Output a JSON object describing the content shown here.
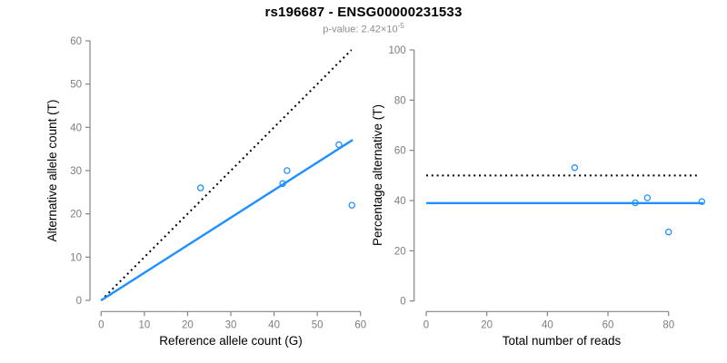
{
  "header": {
    "title": "rs196687 - ENSG00000231533",
    "subtitle": {
      "prefix": "p-value: 2.42×10",
      "exponent": "-5"
    }
  },
  "colors": {
    "line_blue": "#1e90ff",
    "point_blue": "#1e90ff",
    "dotted_black": "#000000",
    "axis_gray": "#848484",
    "tick_label_gray": "#7d7d7d",
    "label_black": "#000000",
    "subtitle_gray": "#8c8c8c"
  },
  "chart_data": [
    {
      "type": "scatter",
      "title": "allele counts panel",
      "xlabel": "Reference allele count (G)",
      "ylabel": "Alternative allele count (T)",
      "xlim": [
        0,
        60
      ],
      "ylim": [
        0,
        60
      ],
      "xticks": [
        0,
        10,
        20,
        30,
        40,
        50,
        60
      ],
      "yticks": [
        0,
        10,
        20,
        30,
        40,
        50,
        60
      ],
      "grid": false,
      "legend": "none",
      "points": [
        [
          23,
          26
        ],
        [
          42,
          27
        ],
        [
          43,
          30
        ],
        [
          55,
          36
        ],
        [
          58,
          22
        ]
      ],
      "lines": [
        {
          "name": "identity-line",
          "style": "dotted",
          "color": "#000000",
          "x": [
            0,
            57.9
          ],
          "y": [
            0,
            57.9
          ]
        },
        {
          "name": "fit-line",
          "style": "solid",
          "color": "#1e90ff",
          "x": [
            0,
            58.2
          ],
          "y": [
            0,
            37.1
          ]
        }
      ]
    },
    {
      "type": "scatter",
      "title": "percentage alternative panel",
      "xlabel": "Total number of reads",
      "ylabel": "Percentage alternative (T)",
      "xlim": [
        0,
        91.5
      ],
      "ylim": [
        0,
        100
      ],
      "xticks": [
        0,
        20,
        40,
        60,
        80
      ],
      "yticks": [
        0,
        20,
        40,
        60,
        80,
        100
      ],
      "grid": false,
      "legend": "none",
      "points": [
        [
          49,
          53.1
        ],
        [
          69,
          39.1
        ],
        [
          73,
          41.1
        ],
        [
          80,
          27.5
        ],
        [
          91,
          39.6
        ]
      ],
      "lines": [
        {
          "name": "expected-50-percent-line",
          "style": "dotted",
          "color": "#000000",
          "x": [
            0,
            90
          ],
          "y": [
            50,
            50
          ]
        },
        {
          "name": "observed-percent-line",
          "style": "solid",
          "color": "#1e90ff",
          "x": [
            0,
            91.5
          ],
          "y": [
            39,
            39
          ]
        }
      ]
    }
  ]
}
